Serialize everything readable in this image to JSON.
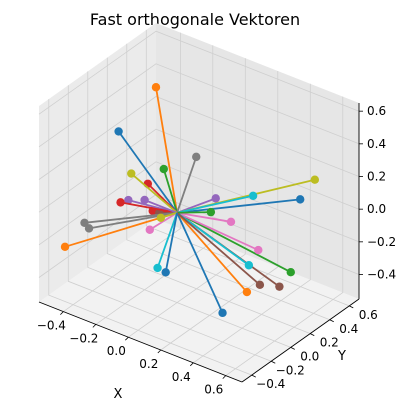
{
  "chart_data": {
    "type": "3d-line-scatter",
    "title": "Fast orthogonale Vektoren",
    "xlabel": "X",
    "ylabel": "Y",
    "zlabel": "",
    "xlim": [
      -0.55,
      0.7
    ],
    "ylim": [
      -0.5,
      0.7
    ],
    "zlim": [
      -0.55,
      0.65
    ],
    "xticks": [
      -0.4,
      -0.2,
      0.0,
      0.2,
      0.4,
      0.6
    ],
    "yticks": [
      -0.4,
      -0.2,
      0.0,
      0.2,
      0.4,
      0.6
    ],
    "zticks": [
      -0.4,
      -0.2,
      0.0,
      0.2,
      0.4,
      0.6
    ],
    "xtick_labels": [
      "−0.4",
      "−0.2",
      "0.0",
      "0.2",
      "0.4",
      "0.6"
    ],
    "ytick_labels": [
      "−0.4",
      "−0.2",
      "0.0",
      "0.2",
      "0.4",
      "0.6"
    ],
    "ztick_labels": [
      "−0.4",
      "−0.2",
      "0.0",
      "0.2",
      "0.4",
      "0.6"
    ],
    "grid": true,
    "origin": [
      0,
      0,
      0
    ],
    "colors": [
      "#1f77b4",
      "#ff7f0e",
      "#2ca02c",
      "#d62728",
      "#9467bd",
      "#8c564b",
      "#e377c2",
      "#7f7f7f",
      "#bcbd22",
      "#17becf"
    ],
    "vectors": [
      {
        "x": 0.44,
        "y": 0.53,
        "z": 0.03,
        "color": "#1f77b4"
      },
      {
        "x": -0.31,
        "y": 0.3,
        "z": 0.52,
        "color": "#ff7f0e"
      },
      {
        "x": -0.16,
        "y": 0.13,
        "z": 0.15,
        "color": "#2ca02c"
      },
      {
        "x": -0.18,
        "y": 0.05,
        "z": -0.08,
        "color": "#d62728"
      },
      {
        "x": 0.1,
        "y": 0.23,
        "z": 0.03,
        "color": "#9467bd"
      },
      {
        "x": -0.05,
        "y": -0.1,
        "z": 0.02,
        "color": "#8c564b"
      },
      {
        "x": 0.2,
        "y": 0.22,
        "z": -0.07,
        "color": "#e377c2"
      },
      {
        "x": 0.01,
        "y": 0.18,
        "z": 0.27,
        "color": "#7f7f7f"
      },
      {
        "x": 0.47,
        "y": 0.63,
        "z": 0.12,
        "color": "#bcbd22"
      },
      {
        "x": 0.27,
        "y": 0.33,
        "z": 0.07,
        "color": "#17becf"
      },
      {
        "x": -0.33,
        "y": -0.05,
        "z": 0.39,
        "color": "#1f77b4"
      },
      {
        "x": 0.4,
        "y": 0.05,
        "z": -0.35,
        "color": "#ff7f0e"
      },
      {
        "x": 0.49,
        "y": 0.35,
        "z": -0.32,
        "color": "#2ca02c"
      },
      {
        "x": -0.15,
        "y": -0.05,
        "z": 0.14,
        "color": "#d62728"
      },
      {
        "x": -0.3,
        "y": 0.0,
        "z": -0.04,
        "color": "#9467bd"
      },
      {
        "x": 0.48,
        "y": 0.25,
        "z": -0.37,
        "color": "#8c564b"
      },
      {
        "x": 0.32,
        "y": 0.3,
        "z": -0.23,
        "color": "#e377c2"
      },
      {
        "x": -0.38,
        "y": -0.27,
        "z": -0.13,
        "color": "#7f7f7f"
      },
      {
        "x": -0.3,
        "y": 0.03,
        "z": 0.11,
        "color": "#bcbd22"
      },
      {
        "x": 0.34,
        "y": 0.17,
        "z": -0.26,
        "color": "#17becf"
      },
      {
        "x": 0.31,
        "y": -0.05,
        "z": -0.47,
        "color": "#1f77b4"
      },
      {
        "x": -0.6,
        "y": -0.15,
        "z": -0.38,
        "color": "#ff7f0e"
      },
      {
        "x": 0.13,
        "y": 0.13,
        "z": 0.0,
        "color": "#2ca02c"
      },
      {
        "x": -0.3,
        "y": -0.08,
        "z": -0.02,
        "color": "#d62728"
      },
      {
        "x": -0.2,
        "y": 0.0,
        "z": 0.0,
        "color": "#9467bd"
      },
      {
        "x": 0.42,
        "y": 0.15,
        "z": -0.34,
        "color": "#8c564b"
      },
      {
        "x": -0.15,
        "y": -0.03,
        "z": -0.15,
        "color": "#e377c2"
      },
      {
        "x": -0.42,
        "y": -0.25,
        "z": -0.12,
        "color": "#7f7f7f"
      },
      {
        "x": -0.1,
        "y": 0.0,
        "z": -0.07,
        "color": "#bcbd22"
      },
      {
        "x": 0.03,
        "y": -0.25,
        "z": -0.22,
        "color": "#17becf"
      },
      {
        "x": 0.05,
        "y": -0.2,
        "z": -0.26,
        "color": "#1f77b4"
      }
    ]
  }
}
